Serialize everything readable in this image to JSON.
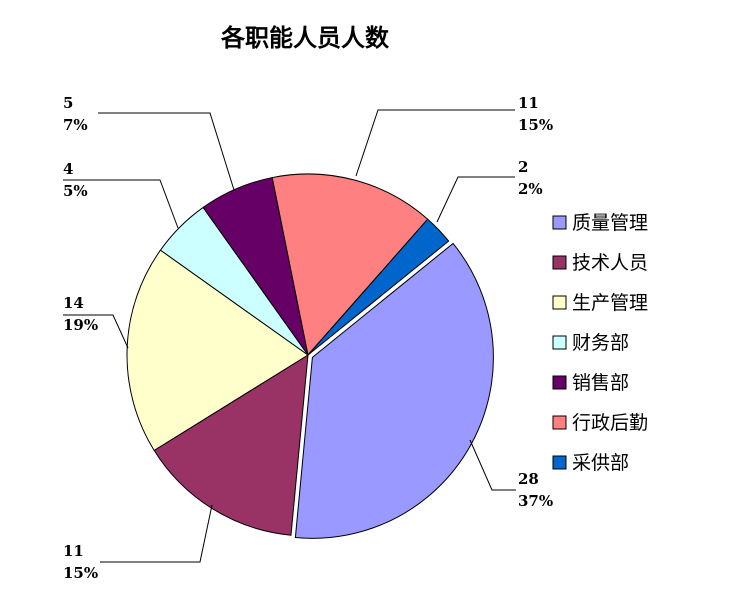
{
  "chart_data": {
    "type": "pie",
    "title": "各职能人员人数",
    "categories": [
      "质量管理",
      "技术人员",
      "生产管理",
      "财务部",
      "销售部",
      "行政后勤",
      "采供部"
    ],
    "values": [
      28,
      11,
      14,
      4,
      5,
      11,
      2
    ],
    "percent_labels": [
      "37%",
      "15%",
      "19%",
      "5%",
      "7%",
      "15%",
      "2%"
    ],
    "colors": [
      "#9999FF",
      "#993366",
      "#FFFFCC",
      "#CCFFFF",
      "#660066",
      "#FF8080",
      "#0066CC"
    ],
    "legend_position": "right",
    "exploded": [
      "质量管理"
    ]
  }
}
